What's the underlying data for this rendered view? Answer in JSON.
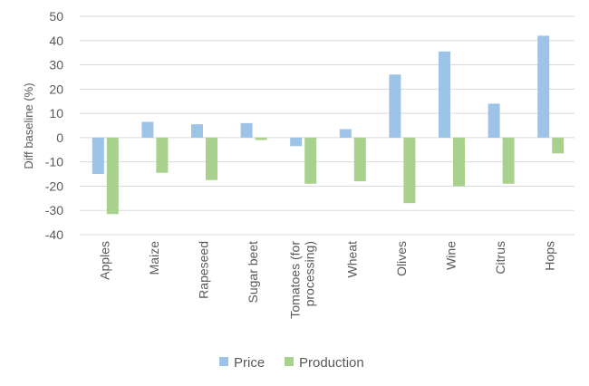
{
  "chart_data": {
    "type": "bar",
    "title": "",
    "xlabel": "",
    "ylabel": "Diff baseline (%)",
    "ylim": [
      -40,
      50
    ],
    "yticks": [
      50,
      40,
      30,
      20,
      10,
      0,
      -10,
      -20,
      -30,
      -40
    ],
    "grid": true,
    "legend_position": "bottom",
    "categories": [
      "Apples",
      "Maize",
      "Rapeseed",
      "Sugar beet",
      [
        "Tomatoes (for",
        "processing)"
      ],
      "Wheat",
      "Olives",
      "Wine",
      "Citrus",
      "Hops"
    ],
    "series": [
      {
        "name": "Price",
        "color": "#9dc3e6",
        "values": [
          -15,
          6.5,
          5.5,
          6,
          -3.5,
          3.5,
          26,
          35.5,
          14,
          42
        ]
      },
      {
        "name": "Production",
        "color": "#a9d18e",
        "values": [
          -31.5,
          -14.5,
          -17.5,
          -1,
          -19,
          -18,
          -27,
          -20,
          -19,
          -6.5
        ]
      }
    ]
  }
}
